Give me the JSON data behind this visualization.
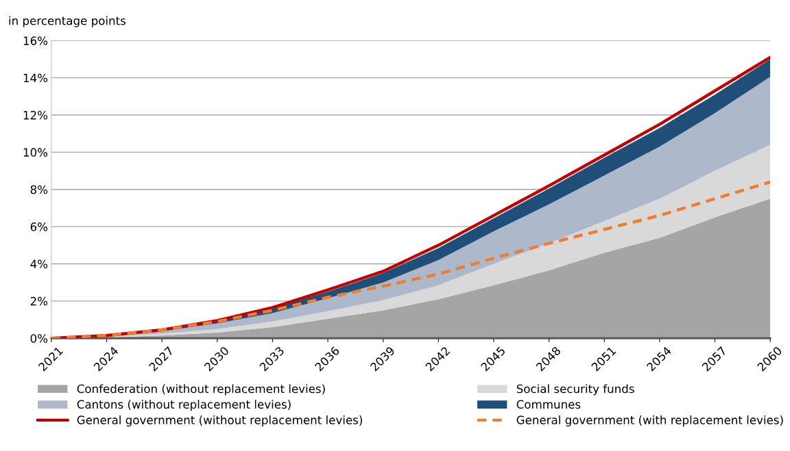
{
  "chart_data": {
    "type": "area",
    "stacked": true,
    "ylabel": "in percentage points",
    "x": [
      2021,
      2024,
      2027,
      2030,
      2033,
      2036,
      2039,
      2042,
      2045,
      2048,
      2051,
      2054,
      2057,
      2060
    ],
    "series": [
      {
        "name": "Confederation (without replacement levies)",
        "color": "#a5a5a5",
        "values": [
          0,
          0.05,
          0.15,
          0.3,
          0.6,
          1.05,
          1.5,
          2.1,
          2.85,
          3.65,
          4.6,
          5.4,
          6.5,
          7.5
        ]
      },
      {
        "name": "Social security funds",
        "color": "#d9d9d9",
        "values": [
          0,
          0.03,
          0.1,
          0.2,
          0.3,
          0.4,
          0.55,
          0.75,
          1.15,
          1.45,
          1.7,
          2.1,
          2.5,
          2.9
        ]
      },
      {
        "name": "Cantons (without replacement levies)",
        "color": "#adb9ca",
        "values": [
          0,
          0.04,
          0.13,
          0.3,
          0.45,
          0.7,
          0.95,
          1.35,
          1.75,
          2.1,
          2.45,
          2.8,
          3.1,
          3.65
        ]
      },
      {
        "name": "Communes",
        "color": "#1f4e79",
        "values": [
          0,
          0.03,
          0.07,
          0.13,
          0.25,
          0.35,
          0.5,
          0.65,
          0.7,
          0.85,
          0.95,
          1.0,
          1.0,
          0.95
        ]
      },
      {
        "name": "General government (without replacement levies)",
        "type": "line",
        "color": "#c00000",
        "line_style": "solid",
        "values": [
          0,
          0.15,
          0.45,
          0.95,
          1.65,
          2.6,
          3.6,
          5.0,
          6.6,
          8.2,
          9.85,
          11.5,
          13.3,
          15.1
        ]
      },
      {
        "name": "General government (with replacement levies)",
        "type": "line",
        "color": "#ed7d31",
        "line_style": "dashed",
        "values": [
          0,
          0.15,
          0.45,
          0.9,
          1.5,
          2.2,
          2.8,
          3.45,
          4.3,
          5.1,
          5.85,
          6.6,
          7.5,
          8.4
        ]
      }
    ],
    "xlim": [
      2021,
      2060
    ],
    "xticks": [
      2021,
      2024,
      2027,
      2030,
      2033,
      2036,
      2039,
      2042,
      2045,
      2048,
      2051,
      2054,
      2057,
      2060
    ],
    "ylim": [
      0,
      16
    ],
    "yticks": [
      {
        "value": 0,
        "label": "0%"
      },
      {
        "value": 2,
        "label": "2%"
      },
      {
        "value": 4,
        "label": "4%"
      },
      {
        "value": 6,
        "label": "6%"
      },
      {
        "value": 8,
        "label": "8%"
      },
      {
        "value": 10,
        "label": "10%"
      },
      {
        "value": 12,
        "label": "12%"
      },
      {
        "value": 14,
        "label": "14%"
      },
      {
        "value": 16,
        "label": "16%"
      }
    ],
    "grid": "y",
    "legend": "bottom"
  }
}
